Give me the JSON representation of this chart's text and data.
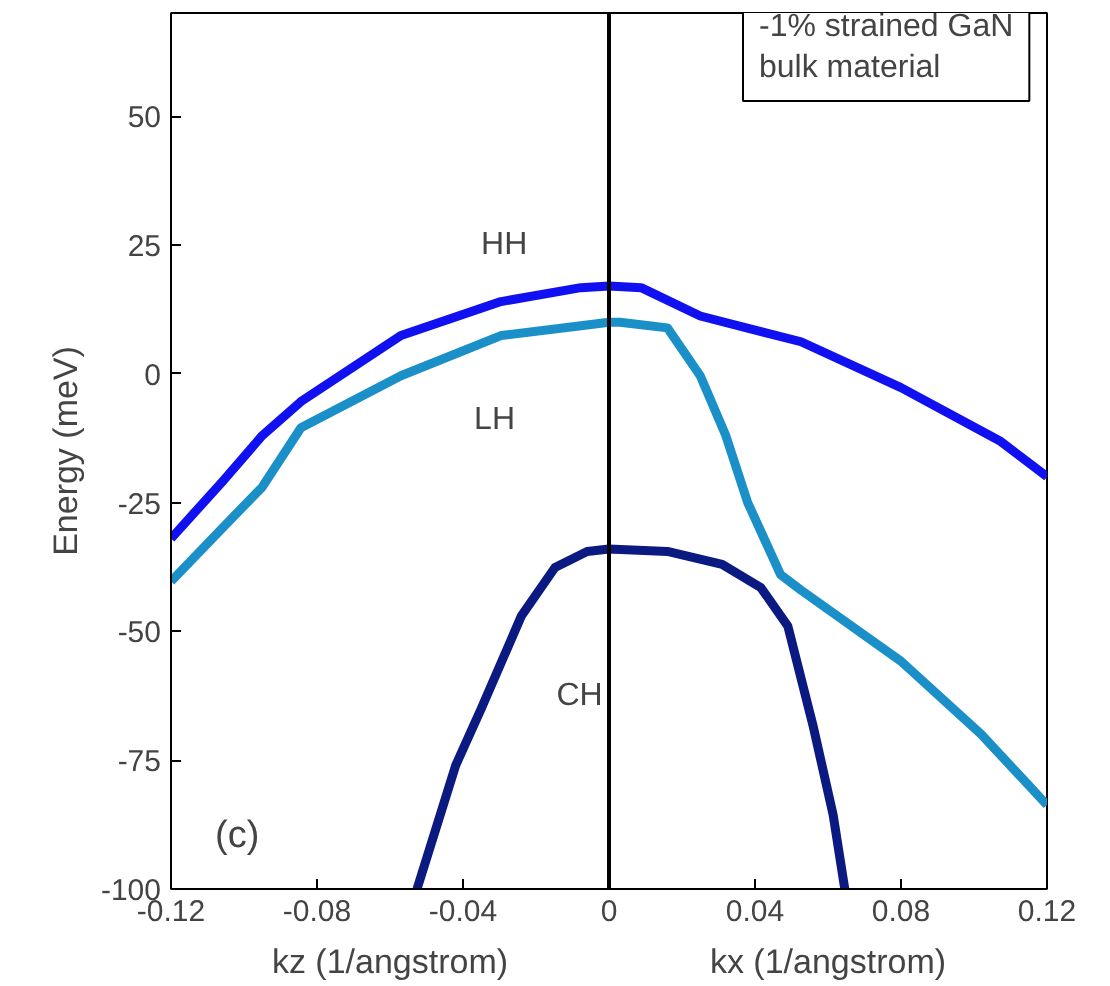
{
  "chart_data": {
    "type": "line",
    "xlabel": "kz (1/angstrom)",
    "ylabel": "Energy (meV)",
    "xlim": [
      -0.12,
      0.12
    ],
    "ylim": [
      -100,
      70
    ],
    "xticks": [
      -0.12,
      -0.08,
      -0.04,
      0,
      0.04,
      0.08,
      0.12
    ],
    "yticks": [
      -100,
      -75,
      -50,
      -25,
      0,
      25,
      50
    ],
    "grid": false,
    "marker": "none",
    "line_style": "solid",
    "ref_lines": [
      {
        "axis": "x",
        "value": 0,
        "color": "#000000"
      }
    ],
    "annotations": [
      "-1% strained GaN\nbulk material",
      "(c)",
      "kx (1/angstrom)",
      "HH",
      "LH",
      "CH"
    ],
    "series": [
      {
        "color": "#1010f0",
        "x": [
          -0.12,
          -0.106,
          -0.095,
          -0.0844,
          -0.057,
          -0.0296,
          -0.0077,
          0,
          0.0088,
          0.025,
          0.0526,
          0.08,
          0.107,
          0.12
        ],
        "values": [
          -32,
          -21,
          -12,
          -5.4,
          7.4,
          14,
          16.7,
          17,
          16.7,
          11.2,
          6.2,
          -2.7,
          -13,
          -20
        ]
      },
      {
        "color": "#1a8fc8",
        "x": [
          -0.12,
          -0.106,
          -0.095,
          -0.0844,
          -0.057,
          -0.0296,
          -0.0077,
          0,
          0.003,
          0.016,
          0.025,
          0.032,
          0.038,
          0.047,
          0.0526,
          0.08,
          0.102,
          0.12
        ],
        "values": [
          -40.3,
          -30,
          -22,
          -10.5,
          -0.4,
          7.4,
          9.3,
          10,
          10,
          8.9,
          -0.4,
          -12,
          -25,
          -39,
          -42,
          -55.8,
          -70,
          -83.7
        ]
      },
      {
        "color": "#0a1a80",
        "x": [
          -0.0526,
          -0.042,
          -0.035,
          -0.024,
          -0.0148,
          -0.006,
          0,
          0.016,
          0.031,
          0.0416,
          0.049,
          0.056,
          0.0614,
          0.0646
        ],
        "values": [
          -100,
          -76,
          -65,
          -47,
          -37.6,
          -34.5,
          -34,
          -34.5,
          -37,
          -41.5,
          -49,
          -68.6,
          -85.6,
          -100
        ]
      }
    ]
  }
}
